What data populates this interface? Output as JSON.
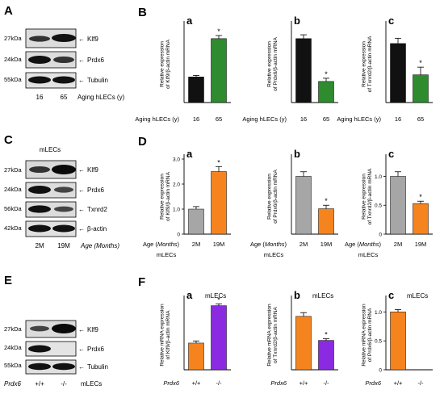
{
  "panel_letters": {
    "A": "A",
    "B": "B",
    "C": "C",
    "D": "D",
    "E": "E",
    "F": "F"
  },
  "colors": {
    "black_bar": "#111111",
    "green_bar": "#2e8b2e",
    "gray_bar": "#a6a6a6",
    "orange_bar": "#f5841f",
    "purple_bar": "#8a2be2"
  },
  "blotA": {
    "rows": [
      {
        "kda": "27kDa",
        "protein": "Klf9"
      },
      {
        "kda": "24kDa",
        "protein": "Prdx6"
      },
      {
        "kda": "55kDa",
        "protein": "Tubulin"
      }
    ],
    "lanes": [
      "16",
      "65"
    ],
    "axis_label": "Aging hLECs (y)"
  },
  "blotC": {
    "header": "mLECs",
    "rows": [
      {
        "kda": "27kDa",
        "protein": "Klf9"
      },
      {
        "kda": "24kDa",
        "protein": "Prdx6"
      },
      {
        "kda": "56kDa",
        "protein": "Txnrd2"
      },
      {
        "kda": "42kDa",
        "protein": "β-actin"
      }
    ],
    "lanes": [
      "2M",
      "19M"
    ],
    "axis_label": "Age (Months)"
  },
  "blotE": {
    "rows": [
      {
        "kda": "27kDa",
        "protein": "Klf9"
      },
      {
        "kda": "24kDa",
        "protein": "Prdx6"
      },
      {
        "kda": "55kDa",
        "protein": "Tubulin"
      }
    ],
    "genotype_label": "Prdx6",
    "lanes": [
      "+/+",
      "-/-"
    ],
    "tail_label": "mLECs"
  },
  "chart_data": [
    {
      "panel": "B",
      "sub": "a",
      "type": "bar",
      "ylabel": "Relative expression of Klf9/β-actin mRNA",
      "xlabel": "Aging hLECs (y)",
      "categories": [
        "16",
        "65"
      ],
      "values": [
        1.0,
        2.5
      ],
      "errors": [
        0.06,
        0.12
      ],
      "colors": [
        "black",
        "green"
      ],
      "ylim": [
        0,
        3
      ],
      "yticks": [],
      "significance": [
        "",
        "*"
      ]
    },
    {
      "panel": "B",
      "sub": "b",
      "type": "bar",
      "ylabel": "Relative expression of Prdx6/β-actin mRNA",
      "xlabel": "Aging hLECs (y)",
      "categories": [
        "16",
        "65"
      ],
      "values": [
        1.0,
        0.33
      ],
      "errors": [
        0.06,
        0.05
      ],
      "colors": [
        "black",
        "green"
      ],
      "ylim": [
        0,
        1.2
      ],
      "yticks": [],
      "significance": [
        "",
        "*"
      ]
    },
    {
      "panel": "B",
      "sub": "c",
      "type": "bar",
      "ylabel": "Relative expression of Txnrd2/β-actin mRNA",
      "xlabel": "Aging hLECs (y)",
      "categories": [
        "16",
        "65"
      ],
      "values": [
        1.0,
        0.47
      ],
      "errors": [
        0.09,
        0.13
      ],
      "colors": [
        "black",
        "green"
      ],
      "ylim": [
        0,
        1.3
      ],
      "yticks": [],
      "significance": [
        "",
        "*"
      ]
    },
    {
      "panel": "D",
      "sub": "a",
      "type": "bar",
      "ylabel": "Relative expression of Klf9/β-actin mRNA",
      "xlabel": "Age (Months)",
      "xsublabel": "mLECs",
      "categories": [
        "2M",
        "19M"
      ],
      "values": [
        1.0,
        2.5
      ],
      "errors": [
        0.1,
        0.2
      ],
      "colors": [
        "gray",
        "orange"
      ],
      "ylim": [
        0,
        3.0
      ],
      "yticks": [
        "0",
        "1.0",
        "2.0",
        "3.0"
      ],
      "significance": [
        "",
        "*"
      ]
    },
    {
      "panel": "D",
      "sub": "b",
      "type": "bar",
      "ylabel": "Relative expression of Prdx6/β-actin mRNA",
      "xlabel": "Age (Months)",
      "xsublabel": "mLECs",
      "categories": [
        "2M",
        "19M"
      ],
      "values": [
        1.0,
        0.44
      ],
      "errors": [
        0.08,
        0.06
      ],
      "colors": [
        "gray",
        "orange"
      ],
      "ylim": [
        0,
        1.3
      ],
      "yticks": [],
      "significance": [
        "",
        "*"
      ]
    },
    {
      "panel": "D",
      "sub": "c",
      "type": "bar",
      "ylabel": "Relative expression of Txnrd2/β-actin mRNA",
      "xlabel": "Age (Months)",
      "xsublabel": "mLECs",
      "categories": [
        "2M",
        "19M"
      ],
      "values": [
        1.0,
        0.53
      ],
      "errors": [
        0.08,
        0.04
      ],
      "colors": [
        "gray",
        "orange"
      ],
      "ylim": [
        0,
        1.3
      ],
      "yticks": [
        "0",
        "0.5",
        "1.0"
      ],
      "significance": [
        "",
        "*"
      ]
    },
    {
      "panel": "F",
      "sub": "a",
      "type": "bar",
      "title": "mLECs",
      "ylabel": "Relative mRNA expression of Klf9/β-actin mRNA",
      "xlabel": "Prdx6",
      "categories": [
        "+/+",
        "-/-"
      ],
      "values": [
        1.0,
        2.4
      ],
      "errors": [
        0.08,
        0.07
      ],
      "colors": [
        "orange",
        "purple"
      ],
      "ylim": [
        0,
        2.6
      ],
      "yticks": [],
      "significance": [
        "",
        "*"
      ]
    },
    {
      "panel": "F",
      "sub": "b",
      "type": "bar",
      "title": "mLECs",
      "ylabel": "Relative mRNA expression of Txnrd2/β-actin mRNA",
      "xlabel": "Prdx6",
      "categories": [
        "+/+",
        "-/-"
      ],
      "values": [
        1.0,
        0.55
      ],
      "errors": [
        0.07,
        0.03
      ],
      "colors": [
        "orange",
        "purple"
      ],
      "ylim": [
        0,
        1.3
      ],
      "yticks": [],
      "significance": [
        "",
        "*"
      ]
    },
    {
      "panel": "F",
      "sub": "c",
      "type": "bar",
      "title": "mLECs",
      "ylabel": "Relative mRNA expression of Prdx6/β-actin mRNA",
      "xlabel": "Prdx6",
      "categories": [
        "+/+",
        "-/-"
      ],
      "values": [
        1.0,
        0.0
      ],
      "errors": [
        0.04,
        0.0
      ],
      "colors": [
        "orange",
        "purple"
      ],
      "ylim": [
        0,
        1.2
      ],
      "yticks": [
        "0",
        "0.5",
        "1.0"
      ],
      "significance": [
        "",
        ""
      ]
    }
  ]
}
